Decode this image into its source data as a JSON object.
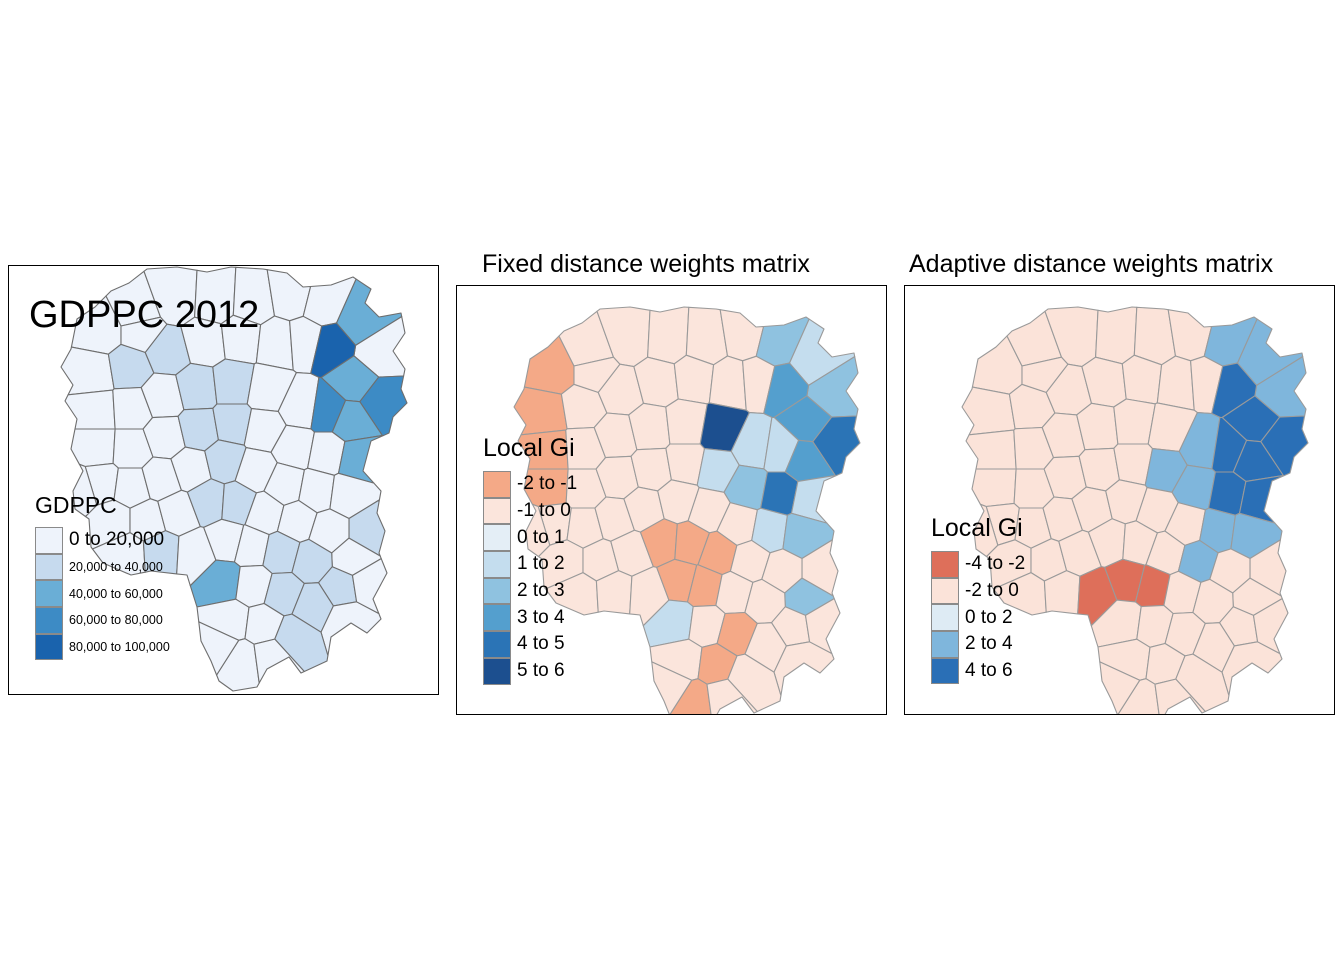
{
  "panels": [
    {
      "id": "gdppc",
      "title": "",
      "map_title": "GDPPC 2012",
      "legend": {
        "title": "GDPPC",
        "items": [
          {
            "label": "0 to 20,000",
            "color": "#eef3fb"
          },
          {
            "label": "20,000 to 40,000",
            "color": "#c6daee"
          },
          {
            "label": "40,000 to 60,000",
            "color": "#6aaed6"
          },
          {
            "label": "60,000 to 80,000",
            "color": "#3d8bc5"
          },
          {
            "label": "80,000 to 100,000",
            "color": "#1a63ad"
          }
        ]
      },
      "border_color": "#6e6e6e"
    },
    {
      "id": "fixed",
      "title": "Fixed distance weights matrix",
      "map_title": "",
      "legend": {
        "title": "Local Gi",
        "items": [
          {
            "label": "-2 to -1",
            "color": "#f4a987"
          },
          {
            "label": "-1 to 0",
            "color": "#fbe5dc"
          },
          {
            "label": "0 to 1",
            "color": "#e4eef6"
          },
          {
            "label": "1 to 2",
            "color": "#c4ddee"
          },
          {
            "label": "2 to 3",
            "color": "#8fc2e0"
          },
          {
            "label": "3 to 4",
            "color": "#549fce"
          },
          {
            "label": "4 to 5",
            "color": "#2b74b6"
          },
          {
            "label": "5 to 6",
            "color": "#1c4f8f"
          }
        ]
      },
      "border_color": "#9a9a9a"
    },
    {
      "id": "adaptive",
      "title": "Adaptive distance weights matrix",
      "map_title": "",
      "legend": {
        "title": "Local Gi",
        "items": [
          {
            "label": "-4 to -2",
            "color": "#de6f5a"
          },
          {
            "label": "-2 to 0",
            "color": "#fbe3d9"
          },
          {
            "label": "0 to 2",
            "color": "#deebf4"
          },
          {
            "label": "2 to 4",
            "color": "#7fb6dc"
          },
          {
            "label": "4 to 6",
            "color": "#2a6fb6"
          }
        ]
      },
      "border_color": "#9a9a9a"
    }
  ]
}
